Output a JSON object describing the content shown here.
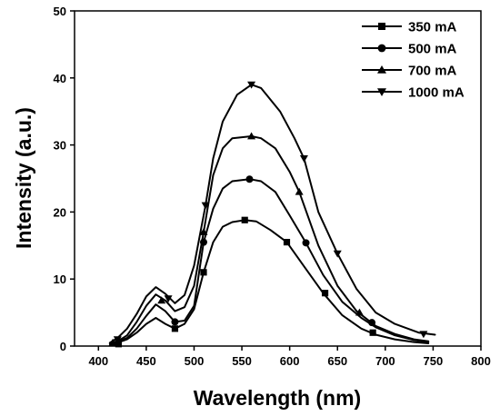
{
  "chart_data": {
    "type": "line",
    "xlabel": "Wavelength (nm)",
    "ylabel": "Intensity (a.u.)",
    "xlim": [
      375,
      800
    ],
    "ylim": [
      0,
      50
    ],
    "xticks": [
      400,
      450,
      500,
      550,
      600,
      650,
      700,
      750,
      800
    ],
    "yticks": [
      0,
      10,
      20,
      30,
      40,
      50
    ],
    "legend_position": "top-right",
    "grid": false,
    "line_color": "#000000",
    "series": [
      {
        "name": "350 mA",
        "marker": "square",
        "x": [
          412,
          420,
          430,
          440,
          450,
          460,
          470,
          480,
          490,
          500,
          510,
          520,
          530,
          540,
          553,
          565,
          580,
          597,
          615,
          635,
          655,
          675,
          690,
          710,
          730,
          745
        ],
        "y": [
          0.3,
          0.5,
          1.0,
          2.0,
          3.3,
          4.2,
          3.3,
          2.6,
          3.3,
          5.5,
          11.0,
          15.5,
          17.8,
          18.5,
          18.8,
          18.6,
          17.3,
          15.5,
          11.9,
          7.9,
          4.6,
          2.6,
          1.7,
          1.0,
          0.6,
          0.4
        ],
        "markers_x": [
          421,
          480,
          510,
          553,
          597,
          637,
          687
        ],
        "markers_y": [
          0.3,
          2.6,
          11.0,
          18.8,
          15.5,
          7.9,
          2.0
        ]
      },
      {
        "name": "500 mA",
        "marker": "circle",
        "x": [
          412,
          420,
          430,
          440,
          450,
          460,
          470,
          480,
          490,
          500,
          510,
          520,
          530,
          540,
          558,
          570,
          585,
          600,
          617,
          635,
          655,
          675,
          690,
          710,
          730,
          745
        ],
        "y": [
          0.4,
          0.6,
          1.2,
          2.6,
          4.5,
          6.2,
          5.2,
          3.6,
          3.8,
          6.0,
          15.5,
          20.5,
          23.5,
          24.6,
          24.9,
          24.6,
          23.0,
          19.5,
          15.4,
          10.6,
          6.6,
          4.2,
          2.8,
          1.6,
          0.9,
          0.6
        ],
        "markers_x": [
          420,
          480,
          510,
          558,
          617,
          686
        ],
        "markers_y": [
          0.4,
          3.6,
          15.5,
          24.9,
          15.4,
          3.5
        ]
      },
      {
        "name": "700 mA",
        "marker": "triangle-up",
        "x": [
          412,
          420,
          430,
          440,
          450,
          460,
          470,
          480,
          490,
          500,
          510,
          520,
          530,
          540,
          560,
          570,
          585,
          600,
          610,
          630,
          650,
          670,
          690,
          710,
          730,
          745
        ],
        "y": [
          0.4,
          0.7,
          1.6,
          3.6,
          6.0,
          7.7,
          6.8,
          5.2,
          5.8,
          9.0,
          17.0,
          25.5,
          29.5,
          31.0,
          31.3,
          31.0,
          29.5,
          26.0,
          23.0,
          15.0,
          9.0,
          5.2,
          3.0,
          1.8,
          1.0,
          0.7
        ],
        "markers_x": [
          415,
          466,
          510,
          560,
          610,
          673
        ],
        "markers_y": [
          0.5,
          6.8,
          17.0,
          31.3,
          23.0,
          5.0
        ]
      },
      {
        "name": "1000 mA",
        "marker": "triangle-down",
        "x": [
          412,
          420,
          430,
          440,
          450,
          460,
          470,
          480,
          490,
          500,
          512,
          520,
          530,
          545,
          560,
          570,
          590,
          605,
          615,
          630,
          650,
          670,
          690,
          710,
          735,
          752
        ],
        "y": [
          0.5,
          1.2,
          2.6,
          4.8,
          7.4,
          8.8,
          7.8,
          6.4,
          7.6,
          12.0,
          21.0,
          28.0,
          33.5,
          37.5,
          39.0,
          38.5,
          35.0,
          31.0,
          28.0,
          20.0,
          13.8,
          8.5,
          5.0,
          3.3,
          2.0,
          1.7
        ],
        "markers_x": [
          420,
          473,
          512,
          560,
          615,
          650,
          740
        ],
        "markers_y": [
          1.0,
          7.1,
          21.0,
          39.0,
          28.0,
          13.8,
          1.8
        ]
      }
    ]
  }
}
